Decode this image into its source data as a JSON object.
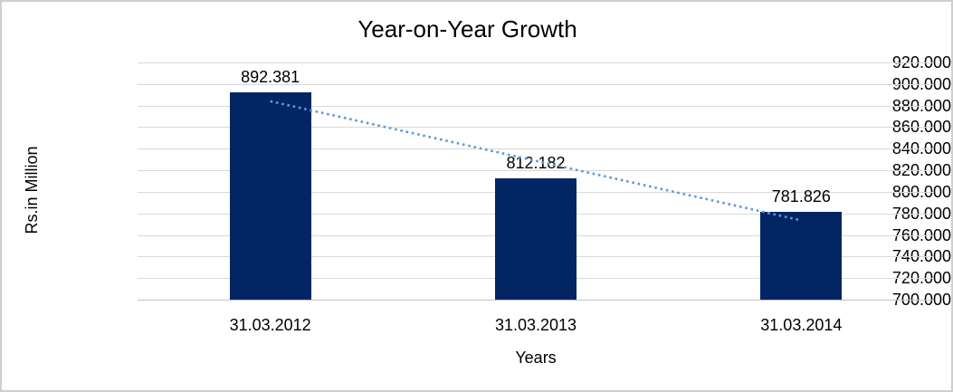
{
  "chart_data": {
    "type": "bar",
    "title": "Year-on-Year Growth",
    "xlabel": "Years",
    "ylabel": "Rs.in Million",
    "categories": [
      "31.03.2012",
      "31.03.2013",
      "31.03.2014"
    ],
    "values": [
      892.381,
      812.182,
      781.826
    ],
    "value_labels": [
      "892.381",
      "812.182",
      "781.826"
    ],
    "ylim": [
      700,
      920
    ],
    "ytick_step": 20,
    "ytick_labels": [
      "920.000",
      "900.000",
      "880.000",
      "860.000",
      "840.000",
      "820.000",
      "800.000",
      "780.000",
      "760.000",
      "740.000",
      "720.000",
      "700.000"
    ],
    "grid": true,
    "legend": false,
    "trendline": {
      "type": "linear",
      "style": "dotted"
    },
    "colors": {
      "bar": "#032564",
      "trendline": "#5B9BD5",
      "gridline": "#D9D9D9",
      "axis_line": "#C3C3C3",
      "text": "#000000",
      "frame_border": "#CFCFCF",
      "background": "#FFFFFF"
    }
  }
}
